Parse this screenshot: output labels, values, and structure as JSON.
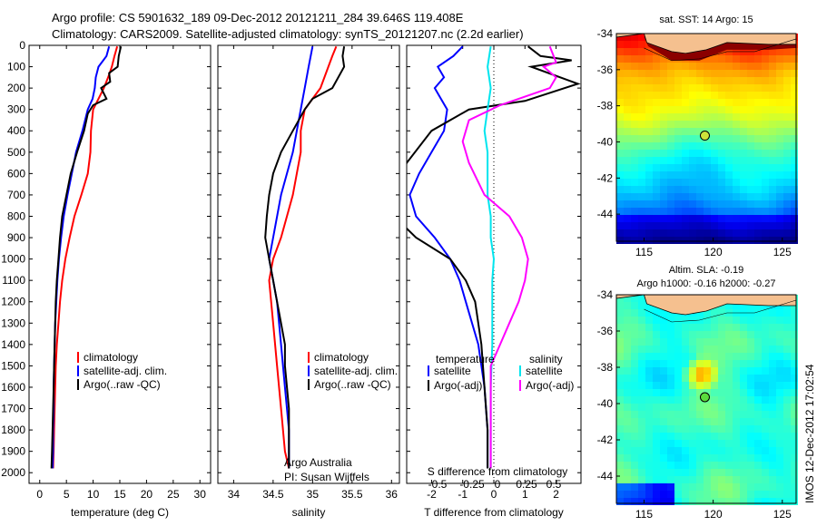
{
  "header": {
    "line1": "Argo profile: CS 5901632_189 09-Dec-2012 20121211_284 39.646S 119.408E",
    "line2": "Climatology: CARS2009. Satellite-adjusted climatology: synTS_20121207.nc (2.2d earlier)"
  },
  "side_text": "IMOS 12-Dec-2012 17:02:54",
  "colors": {
    "climatology": "#ff0000",
    "satellite": "#0000ff",
    "argo": "#000000",
    "sat_salinity": "#00e5ee",
    "argo_salinity": "#ff00ff"
  },
  "chart_data": [
    {
      "type": "line",
      "id": "temperature",
      "xlabel": "temperature (deg C)",
      "xlim": [
        -2,
        32
      ],
      "xticks": [
        0,
        5,
        10,
        15,
        20,
        25,
        30
      ],
      "ylim": [
        0,
        2050
      ],
      "yticks": [
        0,
        100,
        200,
        300,
        400,
        500,
        600,
        700,
        800,
        900,
        1000,
        1100,
        1200,
        1300,
        1400,
        1500,
        1600,
        1700,
        1800,
        1900,
        2000
      ],
      "yreversed": true,
      "legend": [
        "climatology",
        "satellite-adj. clim.",
        "Argo(..raw -QC)"
      ],
      "series": [
        {
          "name": "climatology",
          "color": "#ff0000",
          "points": [
            [
              14.5,
              5
            ],
            [
              14.0,
              50
            ],
            [
              13.5,
              100
            ],
            [
              12.8,
              150
            ],
            [
              12.0,
              200
            ],
            [
              11.0,
              250
            ],
            [
              10.0,
              300
            ],
            [
              9.6,
              400
            ],
            [
              9.5,
              500
            ],
            [
              9.0,
              600
            ],
            [
              7.8,
              700
            ],
            [
              6.5,
              800
            ],
            [
              5.6,
              900
            ],
            [
              4.8,
              1000
            ],
            [
              4.2,
              1100
            ],
            [
              3.8,
              1200
            ],
            [
              3.5,
              1300
            ],
            [
              3.2,
              1400
            ],
            [
              3.0,
              1500
            ],
            [
              2.9,
              1600
            ],
            [
              2.8,
              1700
            ],
            [
              2.7,
              1800
            ],
            [
              2.6,
              1900
            ],
            [
              2.5,
              1980
            ]
          ]
        },
        {
          "name": "satellite-adj. clim.",
          "color": "#0000ff",
          "points": [
            [
              13.0,
              5
            ],
            [
              12.5,
              50
            ],
            [
              11.0,
              100
            ],
            [
              10.5,
              150
            ],
            [
              10.3,
              200
            ],
            [
              9.9,
              250
            ],
            [
              9.0,
              300
            ],
            [
              8.0,
              400
            ],
            [
              6.8,
              500
            ],
            [
              6.0,
              600
            ],
            [
              5.2,
              700
            ],
            [
              4.5,
              800
            ],
            [
              4.0,
              900
            ],
            [
              3.6,
              1000
            ],
            [
              3.3,
              1100
            ],
            [
              3.1,
              1200
            ],
            [
              2.9,
              1300
            ],
            [
              2.8,
              1400
            ],
            [
              2.7,
              1500
            ],
            [
              2.6,
              1600
            ],
            [
              2.6,
              1700
            ],
            [
              2.5,
              1800
            ],
            [
              2.5,
              1900
            ],
            [
              2.4,
              1980
            ]
          ]
        },
        {
          "name": "Argo(..raw -QC)",
          "color": "#000000",
          "points": [
            [
              15.2,
              5
            ],
            [
              14.8,
              50
            ],
            [
              14.6,
              100
            ],
            [
              13.0,
              130
            ],
            [
              13.2,
              170
            ],
            [
              11.5,
              200
            ],
            [
              12.5,
              250
            ],
            [
              10.0,
              280
            ],
            [
              9.0,
              320
            ],
            [
              8.3,
              400
            ],
            [
              7.0,
              500
            ],
            [
              5.8,
              600
            ],
            [
              5.0,
              700
            ],
            [
              4.2,
              800
            ],
            [
              3.8,
              900
            ],
            [
              3.5,
              1000
            ],
            [
              3.2,
              1100
            ],
            [
              3.0,
              1200
            ],
            [
              2.9,
              1300
            ],
            [
              2.8,
              1400
            ],
            [
              2.7,
              1500
            ],
            [
              2.6,
              1600
            ],
            [
              2.5,
              1700
            ],
            [
              2.4,
              1800
            ],
            [
              2.3,
              1900
            ],
            [
              2.2,
              1980
            ]
          ]
        }
      ]
    },
    {
      "type": "line",
      "id": "salinity",
      "xlabel": "salinity",
      "xlim": [
        33.8,
        36.1
      ],
      "xticks": [
        34,
        34.5,
        35,
        35.5,
        36
      ],
      "ylim": [
        0,
        2050
      ],
      "yreversed": true,
      "legend": [
        "climatology",
        "satellite-adj. clim.",
        "Argo(..raw -QC)"
      ],
      "annotations": [
        "Argo Australia",
        "PI: Susan Wijffels"
      ],
      "series": [
        {
          "name": "climatology",
          "color": "#ff0000",
          "points": [
            [
              35.3,
              5
            ],
            [
              35.25,
              50
            ],
            [
              35.2,
              100
            ],
            [
              35.1,
              200
            ],
            [
              35.0,
              250
            ],
            [
              34.9,
              300
            ],
            [
              34.85,
              400
            ],
            [
              34.85,
              500
            ],
            [
              34.75,
              700
            ],
            [
              34.6,
              900
            ],
            [
              34.5,
              1000
            ],
            [
              34.45,
              1100
            ],
            [
              34.5,
              1300
            ],
            [
              34.55,
              1500
            ],
            [
              34.6,
              1700
            ],
            [
              34.65,
              1900
            ],
            [
              34.7,
              1980
            ]
          ]
        },
        {
          "name": "satellite-adj. clim.",
          "color": "#0000ff",
          "points": [
            [
              35.0,
              5
            ],
            [
              34.95,
              100
            ],
            [
              34.9,
              200
            ],
            [
              34.85,
              300
            ],
            [
              34.75,
              500
            ],
            [
              34.6,
              700
            ],
            [
              34.5,
              900
            ],
            [
              34.45,
              1000
            ],
            [
              34.5,
              1100
            ],
            [
              34.55,
              1200
            ],
            [
              34.6,
              1400
            ],
            [
              34.65,
              1600
            ],
            [
              34.7,
              1800
            ],
            [
              34.7,
              1980
            ]
          ]
        },
        {
          "name": "Argo(..raw -QC)",
          "color": "#000000",
          "points": [
            [
              35.4,
              5
            ],
            [
              35.38,
              50
            ],
            [
              35.4,
              100
            ],
            [
              35.25,
              200
            ],
            [
              35.0,
              250
            ],
            [
              34.9,
              300
            ],
            [
              34.75,
              400
            ],
            [
              34.6,
              500
            ],
            [
              34.5,
              600
            ],
            [
              34.45,
              700
            ],
            [
              34.42,
              800
            ],
            [
              34.4,
              900
            ],
            [
              34.45,
              1000
            ],
            [
              34.5,
              1100
            ],
            [
              34.55,
              1200
            ],
            [
              34.6,
              1300
            ],
            [
              34.65,
              1400
            ],
            [
              34.65,
              1500
            ],
            [
              34.7,
              1700
            ],
            [
              34.7,
              1980
            ]
          ]
        }
      ]
    },
    {
      "type": "line",
      "id": "differences",
      "xlabel": "T difference from climatology",
      "xlim": [
        -2.8,
        2.8
      ],
      "xticks": [
        -2,
        -1,
        0,
        1,
        2
      ],
      "top_xlabel": "S difference from climatology",
      "top_xticks": [
        "-0.5",
        "-0.25",
        "0",
        "0.25",
        "0.5"
      ],
      "ylim": [
        0,
        2050
      ],
      "yreversed": true,
      "legend_left_title": "temperature",
      "legend_right_title": "salinity",
      "legend": [
        "satellite",
        "Argo(-adj)",
        "satellite",
        "Argo(-adj)"
      ],
      "series": [
        {
          "name": "satellite",
          "color": "#0000ff",
          "points": [
            [
              -1.0,
              5
            ],
            [
              -1.3,
              50
            ],
            [
              -1.8,
              100
            ],
            [
              -1.6,
              150
            ],
            [
              -1.9,
              200
            ],
            [
              -1.7,
              250
            ],
            [
              -1.5,
              300
            ],
            [
              -1.6,
              400
            ],
            [
              -2.0,
              500
            ],
            [
              -2.4,
              600
            ],
            [
              -2.7,
              700
            ],
            [
              -2.5,
              800
            ],
            [
              -1.9,
              900
            ],
            [
              -1.4,
              1000
            ],
            [
              -1.1,
              1100
            ],
            [
              -0.9,
              1200
            ],
            [
              -0.7,
              1300
            ],
            [
              -0.5,
              1400
            ],
            [
              -0.4,
              1500
            ],
            [
              -0.3,
              1600
            ],
            [
              -0.2,
              1800
            ],
            [
              -0.2,
              1980
            ]
          ]
        },
        {
          "name": "Argo(-adj)",
          "color": "#000000",
          "points": [
            [
              1.1,
              5
            ],
            [
              1.5,
              50
            ],
            [
              2.5,
              70
            ],
            [
              1.2,
              100
            ],
            [
              2.7,
              180
            ],
            [
              1.0,
              260
            ],
            [
              -0.8,
              300
            ],
            [
              -2.0,
              400
            ],
            [
              -2.8,
              550
            ],
            [
              -3.2,
              700
            ],
            [
              -3.2,
              800
            ],
            [
              -2.5,
              900
            ],
            [
              -1.4,
              1000
            ],
            [
              -0.9,
              1100
            ],
            [
              -0.6,
              1200
            ],
            [
              -0.4,
              1400
            ],
            [
              -0.3,
              1600
            ],
            [
              -0.2,
              1800
            ],
            [
              -0.2,
              1980
            ]
          ]
        },
        {
          "name": "satellite",
          "color": "#00e5ee",
          "points": [
            [
              -0.1,
              5
            ],
            [
              -0.2,
              100
            ],
            [
              -0.1,
              200
            ],
            [
              -0.2,
              300
            ],
            [
              -0.3,
              400
            ],
            [
              -0.2,
              500
            ],
            [
              -0.2,
              600
            ],
            [
              -0.2,
              700
            ],
            [
              -0.1,
              800
            ],
            [
              -0.1,
              900
            ],
            [
              0.0,
              1000
            ],
            [
              -0.05,
              1100
            ],
            [
              -0.05,
              1200
            ],
            [
              -0.05,
              1400
            ],
            [
              -0.1,
              1600
            ],
            [
              -0.1,
              1800
            ],
            [
              -0.1,
              1980
            ]
          ]
        },
        {
          "name": "Argo(-adj)",
          "color": "#ff00ff",
          "points": [
            [
              1.8,
              5
            ],
            [
              2.0,
              80
            ],
            [
              1.6,
              100
            ],
            [
              2.0,
              150
            ],
            [
              1.8,
              200
            ],
            [
              0.2,
              280
            ],
            [
              -0.8,
              350
            ],
            [
              -1.0,
              450
            ],
            [
              -0.8,
              550
            ],
            [
              -0.3,
              700
            ],
            [
              0.5,
              800
            ],
            [
              0.9,
              900
            ],
            [
              1.1,
              1000
            ],
            [
              1.0,
              1100
            ],
            [
              0.8,
              1200
            ],
            [
              0.5,
              1300
            ],
            [
              0.2,
              1400
            ],
            [
              -0.1,
              1500
            ],
            [
              -0.1,
              1600
            ],
            [
              -0.1,
              1800
            ],
            [
              -0.1,
              1980
            ]
          ]
        }
      ]
    },
    {
      "type": "heatmap",
      "id": "sst_map",
      "title": "sat. SST: 14 Argo: 15",
      "xticks": [
        115,
        120,
        125
      ],
      "yticks": [
        -34,
        -36,
        -38,
        -40,
        -42,
        -44
      ],
      "xlim": [
        113,
        126
      ],
      "ylim": [
        -45.5,
        -34
      ],
      "marker": {
        "lon": 119.4,
        "lat": -39.65,
        "color": "#cfe23a"
      }
    },
    {
      "type": "heatmap",
      "id": "sla_map",
      "title_line1": "Altim. SLA: -0.19",
      "title_line2": "Argo h1000: -0.16 h2000: -0.27",
      "xticks": [
        115,
        120,
        125
      ],
      "yticks": [
        -34,
        -36,
        -38,
        -40,
        -42,
        -44
      ],
      "xlim": [
        113,
        126
      ],
      "ylim": [
        -45.5,
        -34
      ],
      "marker": {
        "lon": 119.4,
        "lat": -39.65,
        "color": "#5adc3c"
      }
    }
  ]
}
